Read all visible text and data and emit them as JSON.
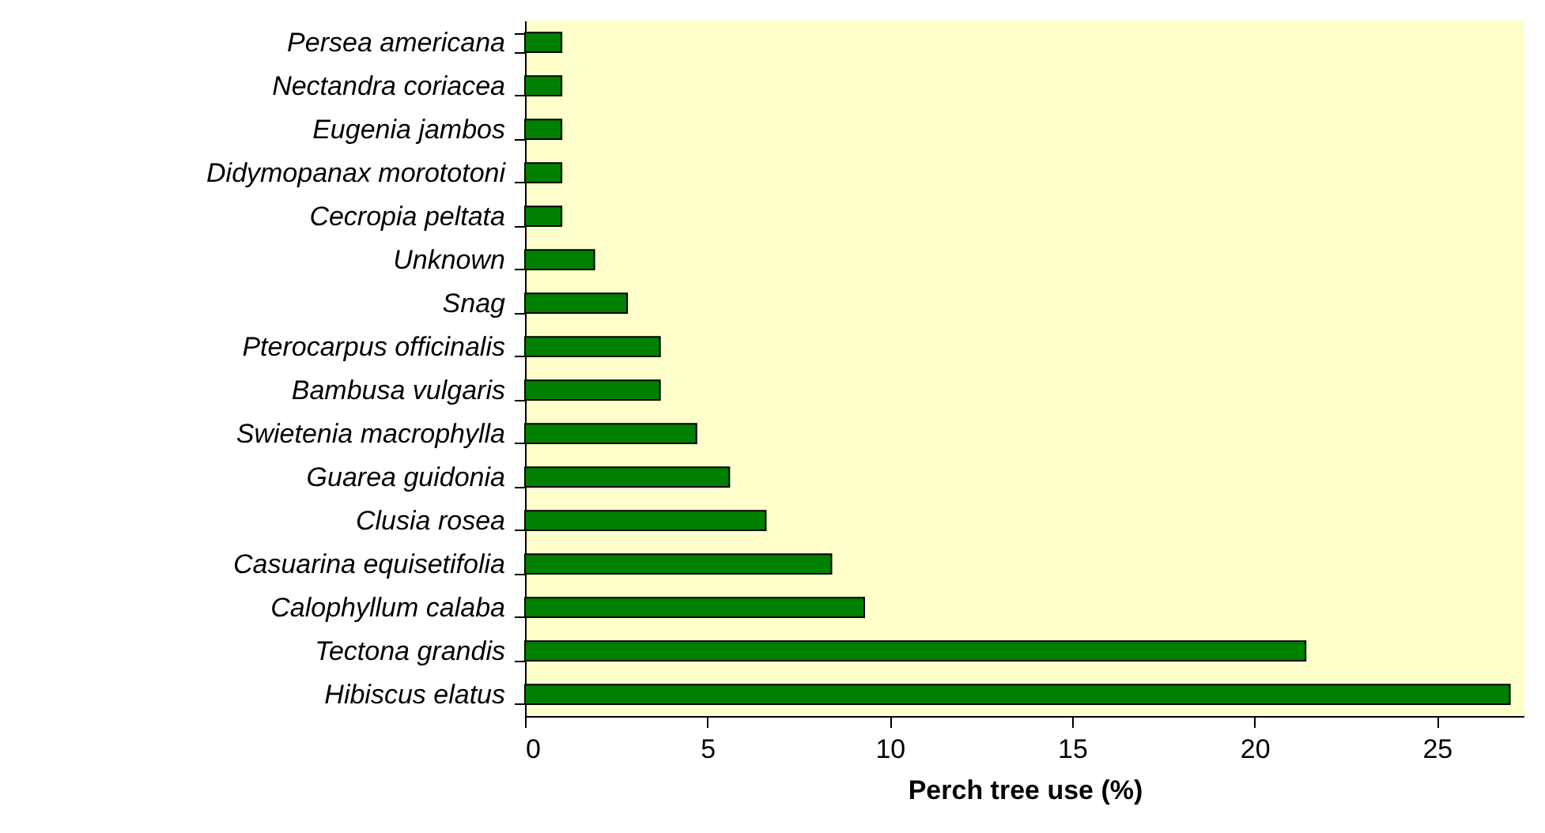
{
  "chart_data": {
    "type": "bar",
    "orientation": "horizontal",
    "xlabel": "Perch tree use (%)",
    "categories": [
      "Persea americana",
      "Nectandra coriacea",
      "Eugenia jambos",
      "Didymopanax morototoni",
      "Cecropia peltata",
      "Unknown",
      "Snag",
      "Pterocarpus officinalis",
      "Bambusa vulgaris",
      "Swietenia macrophylla",
      "Guarea guidonia",
      "Clusia rosea",
      "Casuarina equisetifolia",
      "Calophyllum calaba",
      "Tectona grandis",
      "Hibiscus elatus"
    ],
    "values": [
      1.0,
      1.0,
      1.0,
      1.0,
      1.0,
      1.9,
      2.8,
      3.7,
      3.7,
      4.7,
      5.6,
      6.6,
      8.4,
      9.3,
      21.4,
      27.0
    ],
    "color": "#008000",
    "xlim": [
      0,
      27.4
    ],
    "xticks": [
      0,
      5,
      10,
      15,
      20,
      25
    ],
    "grid": false
  }
}
